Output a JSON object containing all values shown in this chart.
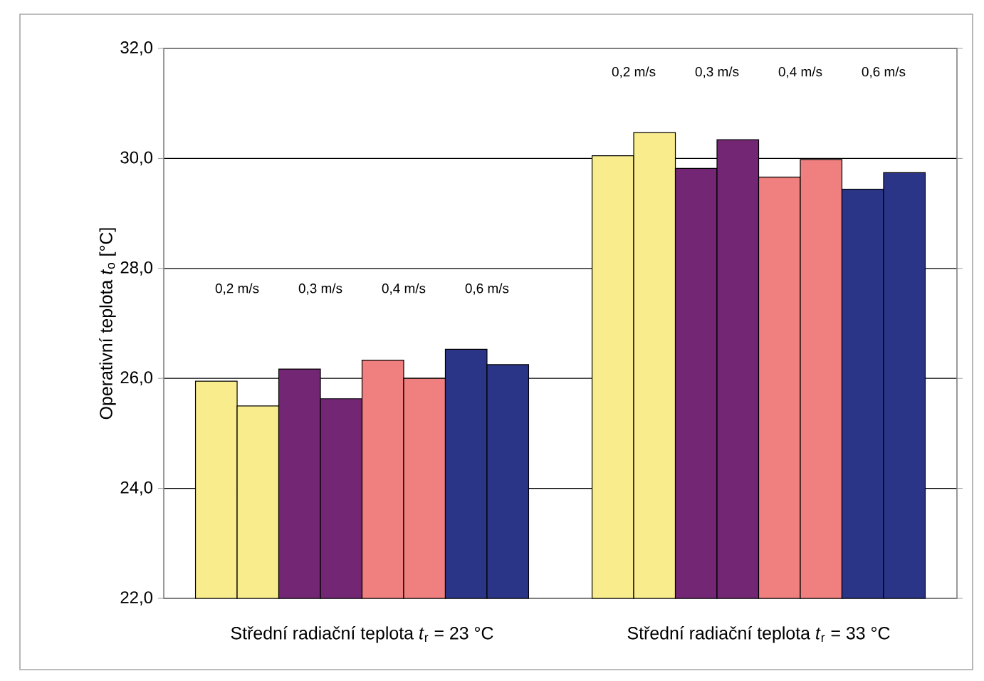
{
  "chart_data": {
    "type": "bar",
    "ylabel": "Operativní teplota *t*$_{o}$ [°C]",
    "categories": [
      "Střední radiační teplota *t*$_{r}$ = 23 °C",
      "Střední radiační teplota *t*$_{r}$ = 33 °C"
    ],
    "series": [
      {
        "color": "#f9ec8c",
        "values": [
          25.95,
          30.05
        ]
      },
      {
        "color": "#f9ec8c",
        "values": [
          25.5,
          30.47
        ]
      },
      {
        "color": "#722673",
        "values": [
          26.17,
          29.82
        ]
      },
      {
        "color": "#722673",
        "values": [
          25.63,
          30.34
        ]
      },
      {
        "color": "#f08080",
        "values": [
          26.33,
          29.66
        ]
      },
      {
        "color": "#f08080",
        "values": [
          26.0,
          29.98
        ]
      },
      {
        "color": "#2b3587",
        "values": [
          26.53,
          29.44
        ]
      },
      {
        "color": "#2b3587",
        "values": [
          26.25,
          29.74
        ]
      }
    ],
    "ylim": [
      22,
      32
    ],
    "yticks": [
      {
        "value": 22,
        "label": "22,0"
      },
      {
        "value": 24,
        "label": "24,0"
      },
      {
        "value": 26,
        "label": "26,0"
      },
      {
        "value": 28,
        "label": "28,0"
      },
      {
        "value": 30,
        "label": "30,0"
      },
      {
        "value": 32,
        "label": "32,0"
      }
    ],
    "grid": "y",
    "annotations": [
      "0,2 m/s",
      "0,3 m/s",
      "0,4 m/s",
      "0,6 m/s",
      "0,2 m/s",
      "0,3 m/s",
      "0,4 m/s",
      "0,6 m/s"
    ]
  }
}
